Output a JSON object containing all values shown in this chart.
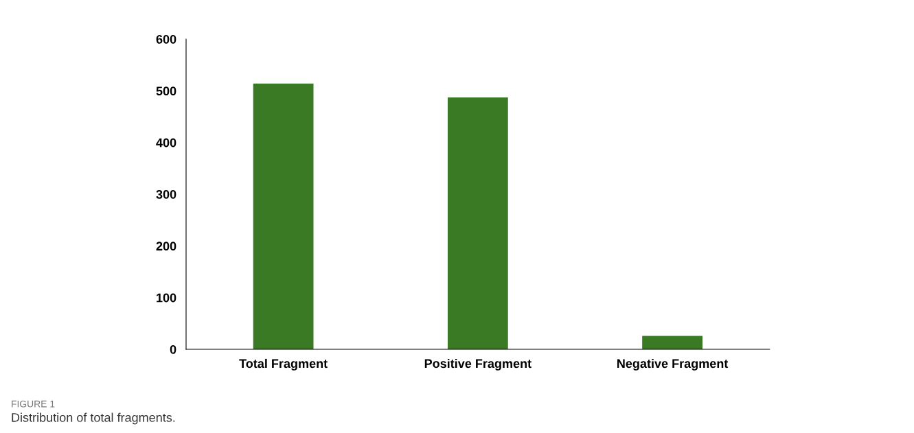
{
  "chart_data": {
    "type": "bar",
    "categories": [
      "Total Fragment",
      "Positive Fragment",
      "Negative Fragment"
    ],
    "values": [
      514,
      487,
      26
    ],
    "color": "#3b7a24",
    "ylim": [
      0,
      600
    ],
    "yticks": [
      0,
      100,
      200,
      300,
      400,
      500,
      600
    ],
    "grid": false,
    "annotations": [
      "FIGURE 1",
      "Distribution of total fragments."
    ]
  }
}
